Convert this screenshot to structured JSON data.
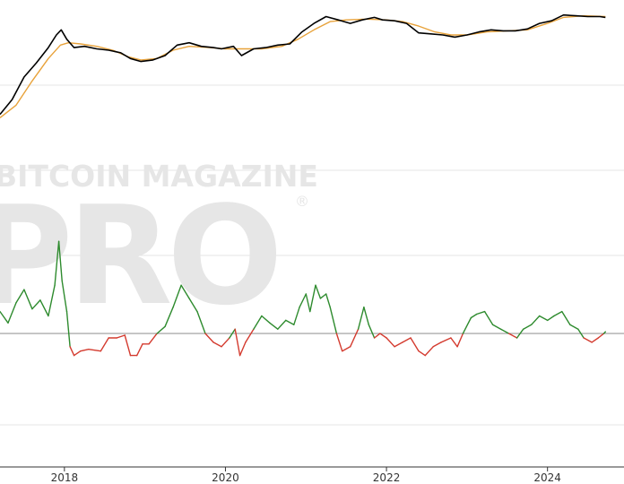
{
  "watermark": {
    "line1": "BITCOIN MAGAZINE",
    "line2": "PRO",
    "registered": "®"
  },
  "colors": {
    "price": "#000000",
    "moving_average": "#e8a23a",
    "oscillator_positive": "#2e8b2e",
    "oscillator_negative": "#d43b2f",
    "zero_line": "#9a9a9a",
    "grid": "#e6e6e6",
    "axis": "#333333",
    "watermark": "#e6e6e6"
  },
  "chart_data": {
    "type": "line",
    "title": "",
    "xlabel": "",
    "ylabel": "",
    "x_range": [
      2017.2,
      2024.95
    ],
    "x_ticks": [
      {
        "value": 2018,
        "label": "2018"
      },
      {
        "value": 2020,
        "label": "2020"
      },
      {
        "value": 2022,
        "label": "2022"
      },
      {
        "value": 2024,
        "label": "2024"
      }
    ],
    "price_panel": {
      "scale": "log",
      "ylim": [
        1,
        9
      ],
      "series": [
        {
          "name": "Price",
          "color": "#000000",
          "points": [
            [
              2017.2,
              2.1
            ],
            [
              2017.35,
              2.6
            ],
            [
              2017.5,
              3.6
            ],
            [
              2017.65,
              4.4
            ],
            [
              2017.8,
              5.5
            ],
            [
              2017.9,
              6.6
            ],
            [
              2017.96,
              7.1
            ],
            [
              2018.03,
              6.2
            ],
            [
              2018.12,
              5.5
            ],
            [
              2018.25,
              5.6
            ],
            [
              2018.4,
              5.4
            ],
            [
              2018.55,
              5.3
            ],
            [
              2018.7,
              5.1
            ],
            [
              2018.82,
              4.7
            ],
            [
              2018.95,
              4.5
            ],
            [
              2019.1,
              4.6
            ],
            [
              2019.25,
              4.9
            ],
            [
              2019.4,
              5.7
            ],
            [
              2019.55,
              5.9
            ],
            [
              2019.7,
              5.6
            ],
            [
              2019.85,
              5.5
            ],
            [
              2019.95,
              5.4
            ],
            [
              2020.1,
              5.6
            ],
            [
              2020.2,
              4.9
            ],
            [
              2020.35,
              5.4
            ],
            [
              2020.5,
              5.5
            ],
            [
              2020.65,
              5.7
            ],
            [
              2020.8,
              5.8
            ],
            [
              2020.95,
              6.9
            ],
            [
              2021.1,
              7.8
            ],
            [
              2021.25,
              8.6
            ],
            [
              2021.4,
              8.2
            ],
            [
              2021.55,
              7.8
            ],
            [
              2021.7,
              8.2
            ],
            [
              2021.85,
              8.5
            ],
            [
              2021.95,
              8.2
            ],
            [
              2022.1,
              8.1
            ],
            [
              2022.25,
              7.8
            ],
            [
              2022.4,
              6.8
            ],
            [
              2022.55,
              6.7
            ],
            [
              2022.7,
              6.6
            ],
            [
              2022.85,
              6.4
            ],
            [
              2023.0,
              6.6
            ],
            [
              2023.15,
              6.9
            ],
            [
              2023.3,
              7.1
            ],
            [
              2023.45,
              7.0
            ],
            [
              2023.6,
              7.0
            ],
            [
              2023.75,
              7.2
            ],
            [
              2023.9,
              7.8
            ],
            [
              2024.05,
              8.1
            ],
            [
              2024.2,
              8.8
            ],
            [
              2024.35,
              8.7
            ],
            [
              2024.5,
              8.6
            ],
            [
              2024.65,
              8.6
            ],
            [
              2024.72,
              8.5
            ]
          ]
        },
        {
          "name": "Moving Average",
          "color": "#e8a23a",
          "points": [
            [
              2017.2,
              2.0
            ],
            [
              2017.4,
              2.4
            ],
            [
              2017.6,
              3.4
            ],
            [
              2017.8,
              4.7
            ],
            [
              2017.95,
              5.7
            ],
            [
              2018.05,
              5.9
            ],
            [
              2018.2,
              5.8
            ],
            [
              2018.4,
              5.6
            ],
            [
              2018.6,
              5.3
            ],
            [
              2018.8,
              4.8
            ],
            [
              2018.95,
              4.6
            ],
            [
              2019.15,
              4.7
            ],
            [
              2019.35,
              5.3
            ],
            [
              2019.55,
              5.6
            ],
            [
              2019.8,
              5.5
            ],
            [
              2020.0,
              5.4
            ],
            [
              2020.2,
              5.4
            ],
            [
              2020.45,
              5.4
            ],
            [
              2020.7,
              5.6
            ],
            [
              2020.9,
              6.2
            ],
            [
              2021.1,
              7.1
            ],
            [
              2021.3,
              8.0
            ],
            [
              2021.5,
              8.2
            ],
            [
              2021.75,
              8.3
            ],
            [
              2022.0,
              8.2
            ],
            [
              2022.2,
              8.0
            ],
            [
              2022.4,
              7.5
            ],
            [
              2022.6,
              6.9
            ],
            [
              2022.8,
              6.6
            ],
            [
              2023.0,
              6.6
            ],
            [
              2023.25,
              6.9
            ],
            [
              2023.5,
              7.0
            ],
            [
              2023.75,
              7.1
            ],
            [
              2024.0,
              7.8
            ],
            [
              2024.2,
              8.5
            ],
            [
              2024.45,
              8.7
            ],
            [
              2024.72,
              8.6
            ]
          ]
        }
      ]
    },
    "oscillator_panel": {
      "ylim": [
        -1.0,
        1.4
      ],
      "zero_line": 0,
      "series": [
        {
          "name": "Oscillator",
          "color_positive": "#2e8b2e",
          "color_negative": "#d43b2f",
          "points": [
            [
              2017.2,
              0.25
            ],
            [
              2017.3,
              0.12
            ],
            [
              2017.4,
              0.35
            ],
            [
              2017.5,
              0.5
            ],
            [
              2017.6,
              0.28
            ],
            [
              2017.7,
              0.38
            ],
            [
              2017.8,
              0.2
            ],
            [
              2017.88,
              0.55
            ],
            [
              2017.93,
              1.05
            ],
            [
              2017.97,
              0.6
            ],
            [
              2018.03,
              0.25
            ],
            [
              2018.07,
              -0.15
            ],
            [
              2018.12,
              -0.25
            ],
            [
              2018.2,
              -0.2
            ],
            [
              2018.3,
              -0.18
            ],
            [
              2018.45,
              -0.2
            ],
            [
              2018.55,
              -0.05
            ],
            [
              2018.65,
              -0.05
            ],
            [
              2018.75,
              -0.02
            ],
            [
              2018.82,
              -0.25
            ],
            [
              2018.9,
              -0.25
            ],
            [
              2018.97,
              -0.12
            ],
            [
              2019.05,
              -0.12
            ],
            [
              2019.15,
              0.0
            ],
            [
              2019.25,
              0.08
            ],
            [
              2019.35,
              0.3
            ],
            [
              2019.45,
              0.55
            ],
            [
              2019.55,
              0.4
            ],
            [
              2019.65,
              0.25
            ],
            [
              2019.75,
              0.0
            ],
            [
              2019.85,
              -0.1
            ],
            [
              2019.95,
              -0.15
            ],
            [
              2020.05,
              -0.05
            ],
            [
              2020.12,
              0.05
            ],
            [
              2020.18,
              -0.25
            ],
            [
              2020.25,
              -0.1
            ],
            [
              2020.35,
              0.05
            ],
            [
              2020.45,
              0.2
            ],
            [
              2020.55,
              0.12
            ],
            [
              2020.65,
              0.05
            ],
            [
              2020.75,
              0.15
            ],
            [
              2020.85,
              0.1
            ],
            [
              2020.92,
              0.3
            ],
            [
              2021.0,
              0.45
            ],
            [
              2021.05,
              0.25
            ],
            [
              2021.12,
              0.55
            ],
            [
              2021.18,
              0.4
            ],
            [
              2021.25,
              0.45
            ],
            [
              2021.3,
              0.3
            ],
            [
              2021.38,
              0.0
            ],
            [
              2021.45,
              -0.2
            ],
            [
              2021.55,
              -0.15
            ],
            [
              2021.65,
              0.05
            ],
            [
              2021.72,
              0.3
            ],
            [
              2021.78,
              0.1
            ],
            [
              2021.85,
              -0.05
            ],
            [
              2021.92,
              0.0
            ],
            [
              2022.0,
              -0.05
            ],
            [
              2022.1,
              -0.15
            ],
            [
              2022.2,
              -0.1
            ],
            [
              2022.3,
              -0.05
            ],
            [
              2022.4,
              -0.2
            ],
            [
              2022.48,
              -0.25
            ],
            [
              2022.58,
              -0.15
            ],
            [
              2022.68,
              -0.1
            ],
            [
              2022.8,
              -0.05
            ],
            [
              2022.88,
              -0.15
            ],
            [
              2022.95,
              0.0
            ],
            [
              2023.05,
              0.18
            ],
            [
              2023.12,
              0.22
            ],
            [
              2023.22,
              0.25
            ],
            [
              2023.32,
              0.1
            ],
            [
              2023.42,
              0.05
            ],
            [
              2023.52,
              0.0
            ],
            [
              2023.62,
              -0.05
            ],
            [
              2023.7,
              0.05
            ],
            [
              2023.8,
              0.1
            ],
            [
              2023.9,
              0.2
            ],
            [
              2024.0,
              0.15
            ],
            [
              2024.08,
              0.2
            ],
            [
              2024.18,
              0.25
            ],
            [
              2024.28,
              0.1
            ],
            [
              2024.38,
              0.05
            ],
            [
              2024.45,
              -0.05
            ],
            [
              2024.55,
              -0.1
            ],
            [
              2024.63,
              -0.05
            ],
            [
              2024.7,
              0.0
            ],
            [
              2024.72,
              0.02
            ]
          ]
        }
      ]
    }
  }
}
